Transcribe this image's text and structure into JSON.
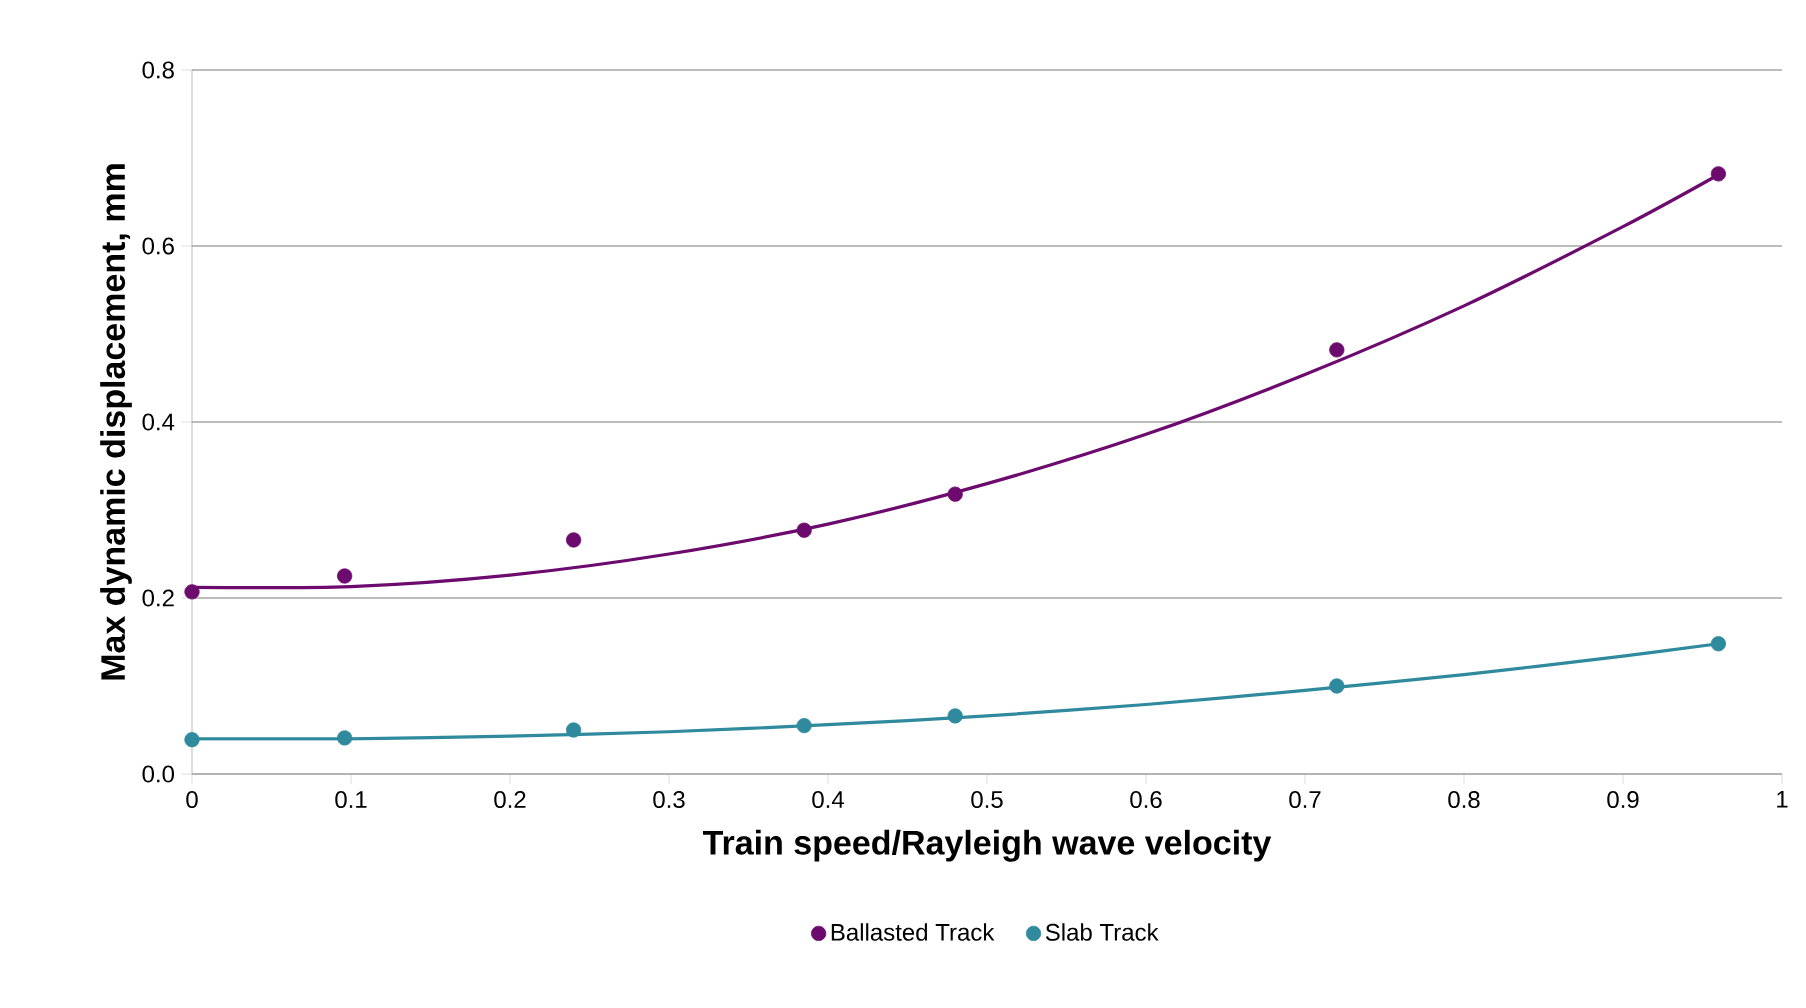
{
  "chart_data": {
    "type": "scatter",
    "xlabel": "Train speed/Rayleigh wave velocity",
    "ylabel": "Max dynamic displacement, mm",
    "xlim": [
      0,
      1
    ],
    "xticks": [
      0,
      0.1,
      0.2,
      0.3,
      0.4,
      0.5,
      0.6,
      0.7,
      0.8,
      0.9,
      1
    ],
    "ylim": [
      0,
      0.8
    ],
    "yticks": [
      {
        "value": 0,
        "label": "0.0"
      },
      0.2,
      0.4,
      0.6,
      0.8
    ],
    "grid": "y",
    "legend": "bottom",
    "series": [
      {
        "name": "Ballasted Track",
        "marker": "circle",
        "color": "#6c0a6e",
        "x": [
          0,
          0.096,
          0.24,
          0.385,
          0.48,
          0.72,
          0.96
        ],
        "values": [
          0.207,
          0.225,
          0.266,
          0.277,
          0.318,
          0.482,
          0.682
        ]
      },
      {
        "name": "Slab Track",
        "marker": "circle",
        "color": "#2f8a9e",
        "x": [
          0,
          0.096,
          0.24,
          0.385,
          0.48,
          0.72,
          0.96
        ],
        "values": [
          0.039,
          0.041,
          0.05,
          0.055,
          0.066,
          0.1,
          0.148
        ]
      },
      {
        "type": "line",
        "marker": "none",
        "color": "#6c0a6e",
        "x": [
          0,
          0.1,
          0.2,
          0.3,
          0.4,
          0.5,
          0.6,
          0.7,
          0.8,
          0.9,
          0.96
        ],
        "values": [
          0.212,
          0.213,
          0.226,
          0.25,
          0.284,
          0.33,
          0.386,
          0.454,
          0.532,
          0.622,
          0.681
        ]
      },
      {
        "type": "line",
        "marker": "none",
        "color": "#2f8a9e",
        "x": [
          0,
          0.1,
          0.2,
          0.3,
          0.4,
          0.5,
          0.6,
          0.7,
          0.8,
          0.9,
          0.96
        ],
        "values": [
          0.04,
          0.04,
          0.043,
          0.048,
          0.056,
          0.066,
          0.079,
          0.095,
          0.113,
          0.134,
          0.148
        ]
      }
    ]
  }
}
